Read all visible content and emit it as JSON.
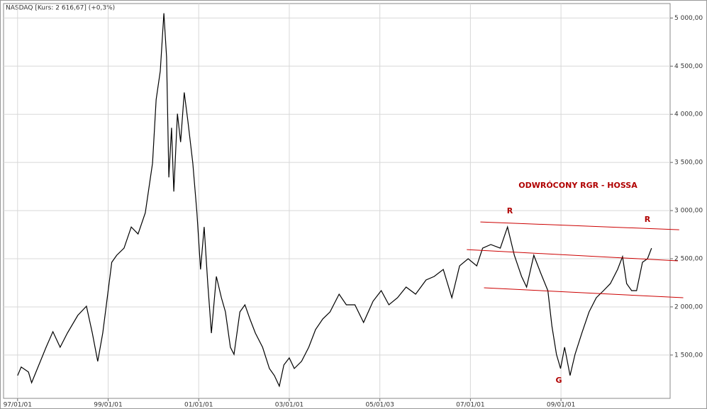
{
  "chart_data": {
    "type": "line",
    "title": "NASDAQ [Kurs: 2 616,67] (+0,3%)",
    "annotations": [
      "ODWRÓCONY RGR - HOSSA",
      "R",
      "R",
      "G"
    ],
    "color": "#000000",
    "trendline_color": "#cc0000",
    "grid": true,
    "xlim": [
      1996.69,
      2011.41
    ],
    "ylim": [
      1050,
      5150
    ],
    "xticks": [
      {
        "value": 1997,
        "label": "97/01/01"
      },
      {
        "value": 1999,
        "label": "99/01/01"
      },
      {
        "value": 2001,
        "label": "01/01/01"
      },
      {
        "value": 2003,
        "label": "03/01/01"
      },
      {
        "value": 2005,
        "label": "05/01/03"
      },
      {
        "value": 2007,
        "label": "07/01/01"
      },
      {
        "value": 2009,
        "label": "09/01/01"
      }
    ],
    "yticks": [
      {
        "value": 1500,
        "label": "1 500,00"
      },
      {
        "value": 2000,
        "label": "2 000,00"
      },
      {
        "value": 2500,
        "label": "2 500,00"
      },
      {
        "value": 3000,
        "label": "3 000,00"
      },
      {
        "value": 3500,
        "label": "3 500,00"
      },
      {
        "value": 4000,
        "label": "4 000,00"
      },
      {
        "value": 4500,
        "label": "4 500,00"
      },
      {
        "value": 5000,
        "label": "5 000,00"
      }
    ],
    "x": [
      1997.0,
      1997.08,
      1997.24,
      1997.31,
      1997.47,
      1997.63,
      1997.78,
      1997.94,
      1998.1,
      1998.33,
      1998.52,
      1998.65,
      1998.77,
      1998.88,
      1998.96,
      1999.08,
      1999.19,
      1999.35,
      1999.51,
      1999.66,
      1999.82,
      1999.98,
      2000.06,
      2000.15,
      2000.23,
      2000.29,
      2000.34,
      2000.4,
      2000.45,
      2000.53,
      2000.6,
      2000.68,
      2000.76,
      2000.87,
      2000.96,
      2001.04,
      2001.12,
      2001.2,
      2001.28,
      2001.39,
      2001.5,
      2001.59,
      2001.7,
      2001.78,
      2001.91,
      2002.02,
      2002.13,
      2002.25,
      2002.41,
      2002.56,
      2002.67,
      2002.78,
      2002.88,
      2003.0,
      2003.11,
      2003.27,
      2003.43,
      2003.58,
      2003.74,
      2003.9,
      2004.1,
      2004.26,
      2004.45,
      2004.64,
      2004.85,
      2005.03,
      2005.2,
      2005.39,
      2005.58,
      2005.79,
      2006.02,
      2006.2,
      2006.4,
      2006.59,
      2006.76,
      2006.95,
      2007.14,
      2007.27,
      2007.45,
      2007.66,
      2007.82,
      2007.97,
      2008.13,
      2008.24,
      2008.4,
      2008.55,
      2008.71,
      2008.8,
      2008.9,
      2008.99,
      2009.08,
      2009.2,
      2009.31,
      2009.46,
      2009.62,
      2009.78,
      2009.94,
      2010.09,
      2010.25,
      2010.36,
      2010.45,
      2010.56,
      2010.67,
      2010.8,
      2010.91,
      2011.0
    ],
    "values": [
      1287,
      1375,
      1324,
      1213,
      1397,
      1581,
      1743,
      1581,
      1728,
      1912,
      2007,
      1728,
      1434,
      1728,
      2022,
      2463,
      2536,
      2610,
      2830,
      2757,
      2977,
      3492,
      4153,
      4447,
      5050,
      4594,
      3345,
      3860,
      3198,
      4006,
      3712,
      4227,
      3933,
      3492,
      2977,
      2389,
      2830,
      2242,
      1728,
      2316,
      2095,
      1948,
      1581,
      1507,
      1948,
      2022,
      1875,
      1728,
      1581,
      1360,
      1287,
      1177,
      1397,
      1470,
      1360,
      1434,
      1581,
      1765,
      1875,
      1948,
      2132,
      2022,
      2022,
      1838,
      2059,
      2169,
      2022,
      2095,
      2206,
      2132,
      2279,
      2316,
      2389,
      2095,
      2426,
      2500,
      2426,
      2610,
      2647,
      2610,
      2830,
      2536,
      2316,
      2206,
      2536,
      2353,
      2169,
      1801,
      1507,
      1360,
      1581,
      1287,
      1507,
      1728,
      1948,
      2095,
      2169,
      2242,
      2389,
      2522,
      2242,
      2169,
      2169,
      2463,
      2500,
      2610
    ],
    "trendlines": [
      {
        "x": [
          2007.22,
          2011.61
        ],
        "y": [
          2882,
          2801
        ]
      },
      {
        "x": [
          2006.92,
          2011.58
        ],
        "y": [
          2595,
          2478
        ]
      },
      {
        "x": [
          2007.3,
          2011.7
        ],
        "y": [
          2198,
          2095
        ]
      }
    ]
  }
}
